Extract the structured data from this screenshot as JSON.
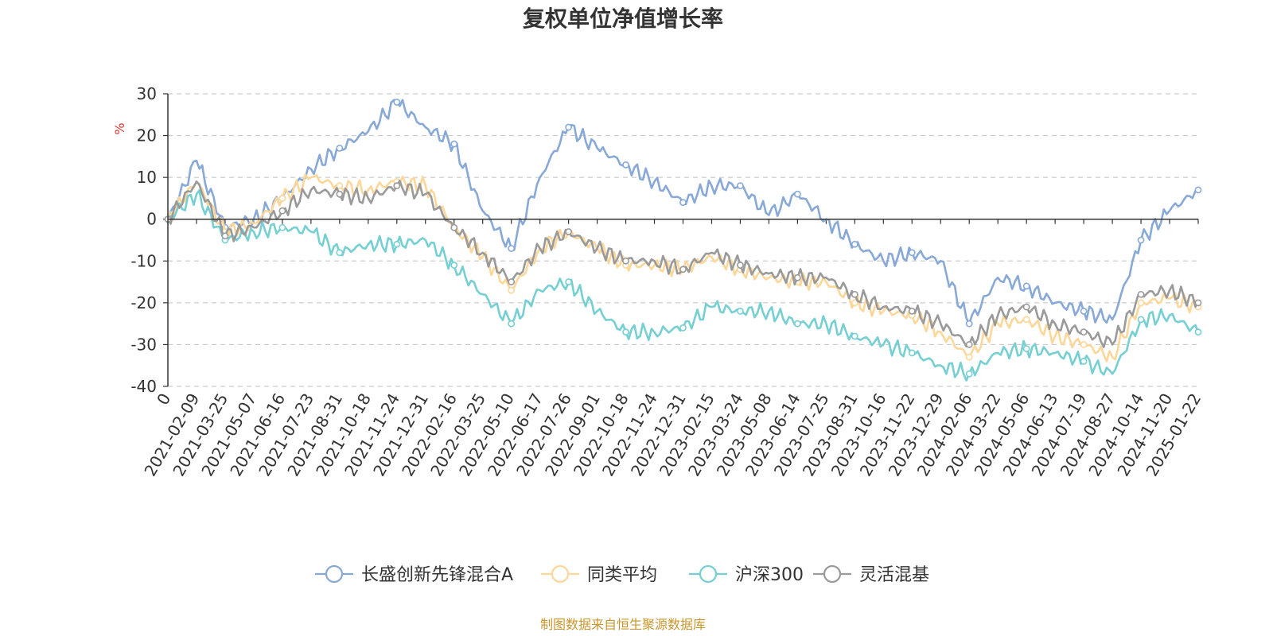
{
  "chart_data": {
    "type": "line",
    "title": "复权单位净值增长率",
    "ylabel": "%",
    "ylim": [
      -40,
      30
    ],
    "y_ticks": [
      "30",
      "20",
      "10",
      "0",
      "-10",
      "-20",
      "-30",
      "-40"
    ],
    "categories": [
      "0",
      "2021-02-09",
      "2021-03-25",
      "2021-05-07",
      "2021-06-16",
      "2021-07-23",
      "2021-08-31",
      "2021-10-18",
      "2021-11-24",
      "2021-12-31",
      "2022-02-16",
      "2022-03-25",
      "2022-05-10",
      "2022-06-17",
      "2022-07-26",
      "2022-09-01",
      "2022-10-18",
      "2022-11-24",
      "2022-12-31",
      "2023-02-15",
      "2023-03-24",
      "2023-05-08",
      "2023-06-14",
      "2023-07-25",
      "2023-08-31",
      "2023-10-16",
      "2023-11-22",
      "2023-12-29",
      "2024-02-06",
      "2024-03-22",
      "2024-05-06",
      "2024-06-13",
      "2024-07-19",
      "2024-08-27",
      "2024-10-14",
      "2024-11-20",
      "2025-01-22"
    ],
    "series": [
      {
        "name": "长盛创新先锋混合A",
        "color": "#88a9d8",
        "values": [
          0,
          14,
          -2,
          0,
          5,
          12,
          17,
          21,
          28,
          22,
          18,
          2,
          -7,
          10,
          22,
          17,
          13,
          9,
          4,
          8,
          8,
          1,
          6,
          0,
          -6,
          -10,
          -8,
          -10,
          -25,
          -14,
          -16,
          -20,
          -22,
          -24,
          -5,
          2,
          7
        ]
      },
      {
        "name": "同类平均",
        "color": "#fdd79a",
        "values": [
          0,
          9,
          -3,
          -1,
          5,
          10,
          8,
          7,
          9,
          8,
          -2,
          -9,
          -17,
          -7,
          -3,
          -7,
          -11,
          -11,
          -12,
          -9,
          -12,
          -14,
          -15,
          -15,
          -20,
          -22,
          -23,
          -27,
          -33,
          -25,
          -24,
          -28,
          -30,
          -33,
          -20,
          -19,
          -21
        ]
      },
      {
        "name": "沪深300",
        "color": "#76cfd2",
        "values": [
          0,
          6,
          -5,
          -3,
          -2,
          -3,
          -8,
          -6,
          -6,
          -5,
          -11,
          -18,
          -25,
          -17,
          -15,
          -22,
          -27,
          -27,
          -26,
          -21,
          -22,
          -22,
          -25,
          -25,
          -28,
          -30,
          -32,
          -35,
          -37,
          -32,
          -31,
          -32,
          -34,
          -37,
          -24,
          -23,
          -27
        ]
      },
      {
        "name": "灵活混基",
        "color": "#9a9a9a",
        "values": [
          0,
          9,
          -4,
          -2,
          2,
          7,
          6,
          5,
          8,
          6,
          -2,
          -8,
          -15,
          -7,
          -3,
          -7,
          -10,
          -10,
          -12,
          -8,
          -11,
          -13,
          -14,
          -14,
          -18,
          -21,
          -22,
          -25,
          -30,
          -23,
          -21,
          -25,
          -27,
          -30,
          -18,
          -17,
          -20
        ]
      }
    ],
    "legend_position": "bottom-center",
    "grid": "horizontal-dashed"
  },
  "footer": {
    "source": "制图数据来自恒生聚源数据库",
    "source_color": "#c8962e"
  },
  "axis": {
    "ylabel_color": "#e53333"
  }
}
